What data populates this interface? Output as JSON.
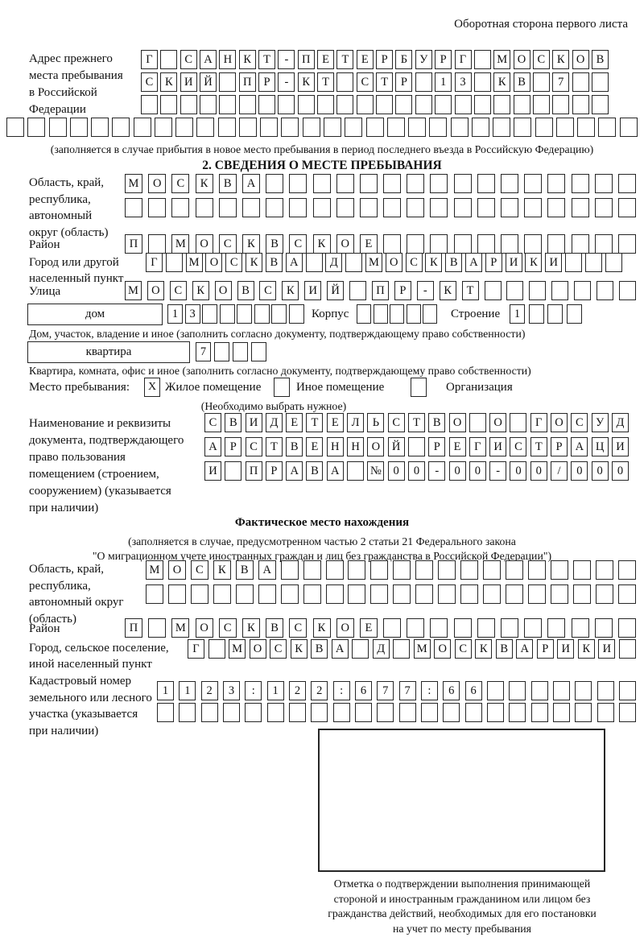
{
  "header": {
    "note": "Оборотная сторона первого листа"
  },
  "prev_address": {
    "label": "Адрес прежнего\nместа пребывания\nв Российской\nФедерации",
    "rows": [
      [
        "Г",
        "",
        "С",
        "А",
        "Н",
        "К",
        "Т",
        "-",
        "П",
        "Е",
        "Т",
        "Е",
        "Р",
        "Б",
        "У",
        "Р",
        "Г",
        "",
        "М",
        "О",
        "С",
        "К",
        "О",
        "В"
      ],
      [
        "С",
        "К",
        "И",
        "Й",
        "",
        "П",
        "Р",
        "-",
        "К",
        "Т",
        "",
        "С",
        "Т",
        "Р",
        "",
        "1",
        "3",
        "",
        "К",
        "В",
        "",
        "7",
        "",
        ""
      ],
      [
        "",
        "",
        "",
        "",
        "",
        "",
        "",
        "",
        "",
        "",
        "",
        "",
        "",
        "",
        "",
        "",
        "",
        "",
        "",
        "",
        "",
        "",
        "",
        ""
      ]
    ],
    "overflow_row": [
      "",
      "",
      "",
      "",
      "",
      "",
      "",
      "",
      "",
      "",
      "",
      "",
      "",
      "",
      "",
      "",
      "",
      "",
      "",
      "",
      "",
      "",
      "",
      "",
      "",
      "",
      "",
      "",
      "",
      ""
    ],
    "note": "(заполняется в случае прибытия в новое место пребывания в период последнего въезда в Российскую Федерацию)"
  },
  "section2": {
    "title": "2. СВЕДЕНИЯ О МЕСТЕ ПРЕБЫВАНИЯ",
    "region": {
      "label": "Область, край,\nреспублика,\nавтономный\nокруг (область)",
      "row1": [
        "М",
        "О",
        "С",
        "К",
        "В",
        "А",
        "",
        "",
        "",
        "",
        "",
        "",
        "",
        "",
        "",
        "",
        "",
        "",
        "",
        "",
        "",
        ""
      ],
      "row2": [
        "",
        "",
        "",
        "",
        "",
        "",
        "",
        "",
        "",
        "",
        "",
        "",
        "",
        "",
        "",
        "",
        "",
        "",
        "",
        "",
        "",
        ""
      ]
    },
    "district": {
      "label": "Район",
      "row": [
        "П",
        "",
        "М",
        "О",
        "С",
        "К",
        "В",
        "С",
        "К",
        "О",
        "Е",
        "",
        "",
        "",
        "",
        "",
        "",
        "",
        "",
        "",
        "",
        ""
      ]
    },
    "city": {
      "label": "Город или другой\nнаселенный пункт",
      "row": [
        "Г",
        "",
        "М",
        "О",
        "С",
        "К",
        "В",
        "А",
        "",
        "Д",
        "",
        "М",
        "О",
        "С",
        "К",
        "В",
        "А",
        "Р",
        "И",
        "К",
        "И",
        "",
        "",
        ""
      ]
    },
    "street": {
      "label": "Улица",
      "row": [
        "М",
        "О",
        "С",
        "К",
        "О",
        "В",
        "С",
        "К",
        "И",
        "Й",
        "",
        "П",
        "Р",
        "-",
        "К",
        "Т",
        "",
        "",
        "",
        "",
        "",
        "",
        ""
      ]
    },
    "house": {
      "box_label": "дом",
      "cells": [
        "1",
        "3",
        "",
        "",
        "",
        "",
        "",
        ""
      ],
      "korpus_label": "Корпус",
      "korpus_cells": [
        "",
        "",
        "",
        "",
        ""
      ],
      "stroenie_label": "Строение",
      "stroenie_cells": [
        "1",
        "",
        "",
        ""
      ],
      "caption": "Дом, участок, владение и иное (заполнить согласно документу, подтверждающему право собственности)"
    },
    "apartment": {
      "box_label": "квартира",
      "cells": [
        "7",
        "",
        "",
        ""
      ],
      "caption": "Квартира, комната, офис и иное (заполнить согласно документу, подтверждающему право собственности)"
    },
    "stay_type": {
      "label": "Место пребывания:",
      "options": [
        {
          "mark": "X",
          "label": "Жилое помещение"
        },
        {
          "mark": "",
          "label": "Иное помещение"
        },
        {
          "mark": "",
          "label": "Организация"
        }
      ],
      "note": "(Необходимо выбрать нужное)"
    },
    "document": {
      "label": "Наименование и реквизиты\nдокумента, подтверждающего\nправо пользования\nпомещением (строением,\nсооружением) (указывается\nпри наличии)",
      "row1": [
        "С",
        "В",
        "И",
        "Д",
        "Е",
        "Т",
        "Е",
        "Л",
        "Ь",
        "С",
        "Т",
        "В",
        "О",
        "",
        "О",
        "",
        "Г",
        "О",
        "С",
        "У",
        "Д"
      ],
      "row2": [
        "А",
        "Р",
        "С",
        "Т",
        "В",
        "Е",
        "Н",
        "Н",
        "О",
        "Й",
        "",
        "Р",
        "Е",
        "Г",
        "И",
        "С",
        "Т",
        "Р",
        "А",
        "Ц",
        "И"
      ],
      "row3": [
        "И",
        "",
        "П",
        "Р",
        "А",
        "В",
        "А",
        "",
        "№",
        "0",
        "0",
        "-",
        "0",
        "0",
        "-",
        "0",
        "0",
        "/",
        "0",
        "0",
        "0"
      ]
    }
  },
  "actual_location": {
    "title": "Фактическое место нахождения",
    "note1": "(заполняется в случае, предусмотренном частью 2 статьи 21 Федерального закона",
    "note2": "\"О миграционном учете иностранных граждан и лиц без гражданства в Российской Федерации\")",
    "region": {
      "label": "Область, край,\nреспублика,\nавтономный округ\n(область)",
      "row1": [
        "М",
        "О",
        "С",
        "К",
        "В",
        "А",
        "",
        "",
        "",
        "",
        "",
        "",
        "",
        "",
        "",
        "",
        "",
        "",
        "",
        "",
        "",
        ""
      ],
      "row2": [
        "",
        "",
        "",
        "",
        "",
        "",
        "",
        "",
        "",
        "",
        "",
        "",
        "",
        "",
        "",
        "",
        "",
        "",
        "",
        "",
        "",
        ""
      ]
    },
    "district": {
      "label": "Район",
      "row": [
        "П",
        "",
        "М",
        "О",
        "С",
        "К",
        "В",
        "С",
        "К",
        "О",
        "Е",
        "",
        "",
        "",
        "",
        "",
        "",
        "",
        "",
        "",
        "",
        ""
      ]
    },
    "city": {
      "label": "Город, сельское поселение,\nиной населенный пункт",
      "row": [
        "Г",
        "",
        "М",
        "О",
        "С",
        "К",
        "В",
        "А",
        "",
        "Д",
        "",
        "М",
        "О",
        "С",
        "К",
        "В",
        "А",
        "Р",
        "И",
        "К",
        "И",
        ""
      ]
    },
    "cadastre": {
      "label": "Кадастровый номер\nземельного или лесного\nучастка (указывается\nпри наличии)",
      "row1": [
        "1",
        "1",
        "2",
        "3",
        ":",
        "1",
        "2",
        "2",
        ":",
        "6",
        "7",
        "7",
        ":",
        "6",
        "6",
        "",
        "",
        "",
        "",
        "",
        "",
        ""
      ],
      "row2": [
        "",
        "",
        "",
        "",
        "",
        "",
        "",
        "",
        "",
        "",
        "",
        "",
        "",
        "",
        "",
        "",
        "",
        "",
        "",
        "",
        "",
        ""
      ]
    },
    "mark_caption": "Отметка о подтверждении выполнения принимающей\nстороной и иностранным гражданином или лицом без\nгражданства действий, необходимых для его постановки\nна учет по месту пребывания"
  }
}
